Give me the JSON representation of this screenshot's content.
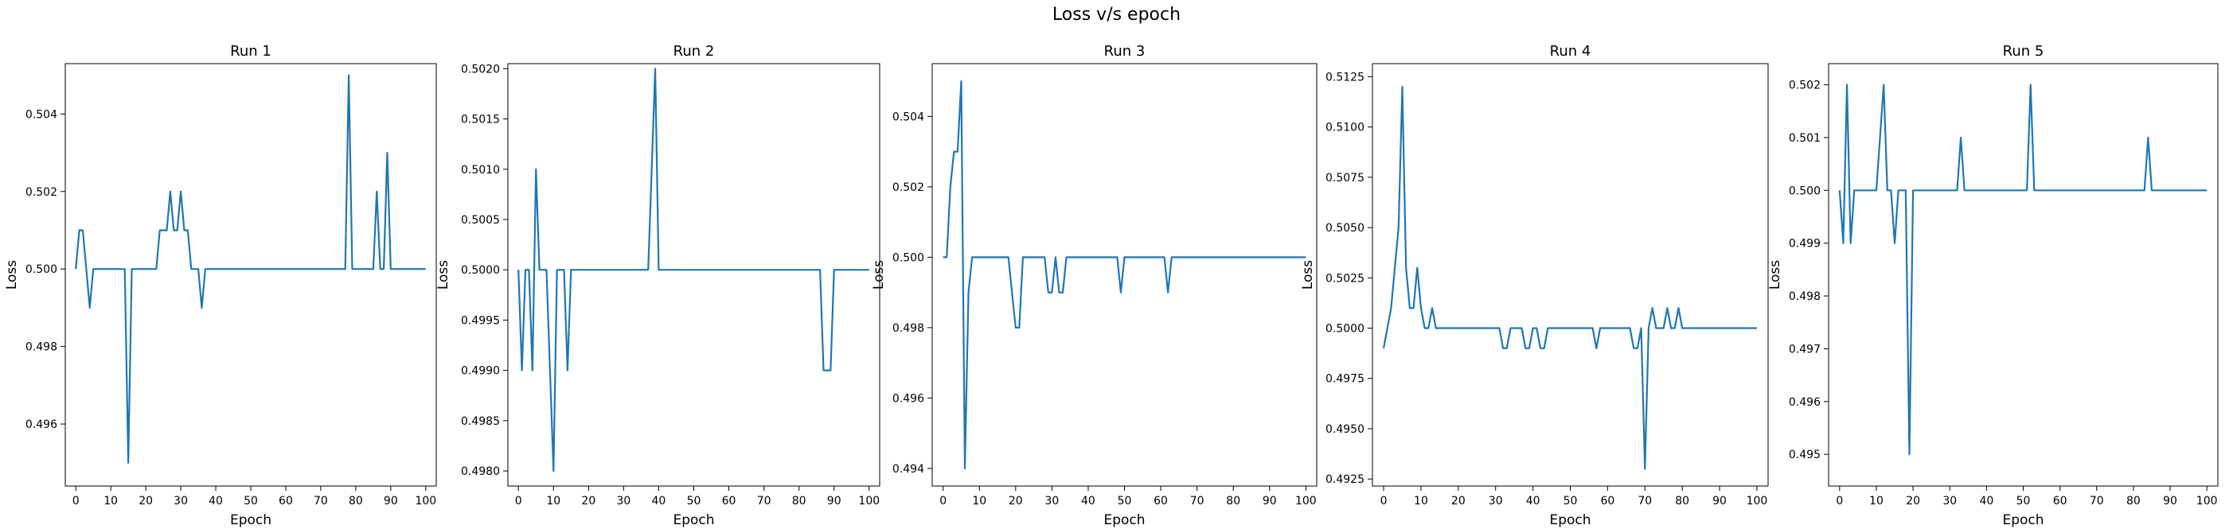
{
  "figure": {
    "title": "Loss v/s epoch"
  },
  "chart_data": [
    {
      "type": "line",
      "title": "Run 1",
      "xlabel": "Epoch",
      "ylabel": "Loss",
      "xlim": [
        -3,
        103
      ],
      "ylim": [
        0.4944,
        0.5053
      ],
      "xticks": [
        0,
        10,
        20,
        30,
        40,
        50,
        60,
        70,
        80,
        90,
        100
      ],
      "yticks": [
        0.496,
        0.498,
        0.5,
        0.502,
        0.504
      ],
      "ytick_labels": [
        "0.496",
        "0.498",
        "0.500",
        "0.502",
        "0.504"
      ],
      "color": "#1f77b4",
      "series": [
        {
          "x": [
            0,
            1,
            2,
            3,
            4,
            5,
            14,
            15,
            16,
            17,
            23,
            24,
            25,
            26,
            27,
            28,
            29,
            30,
            31,
            32,
            33,
            34,
            35,
            36,
            37,
            38,
            39,
            40,
            77,
            78,
            79,
            85,
            86,
            87,
            88,
            89,
            90,
            100
          ],
          "y": [
            0.5,
            0.501,
            0.501,
            0.5,
            0.499,
            0.5,
            0.5,
            0.495,
            0.5,
            0.5,
            0.5,
            0.501,
            0.501,
            0.501,
            0.502,
            0.501,
            0.501,
            0.502,
            0.501,
            0.501,
            0.5,
            0.5,
            0.5,
            0.499,
            0.5,
            0.5,
            0.5,
            0.5,
            0.5,
            0.505,
            0.5,
            0.5,
            0.502,
            0.5,
            0.5,
            0.503,
            0.5,
            0.5
          ]
        }
      ]
    },
    {
      "type": "line",
      "title": "Run 2",
      "xlabel": "Epoch",
      "ylabel": "Loss",
      "xlim": [
        -3,
        103
      ],
      "ylim": [
        0.49785,
        0.50205
      ],
      "xticks": [
        0,
        10,
        20,
        30,
        40,
        50,
        60,
        70,
        80,
        90,
        100
      ],
      "yticks": [
        0.498,
        0.4985,
        0.499,
        0.4995,
        0.5,
        0.5005,
        0.501,
        0.5015,
        0.502
      ],
      "ytick_labels": [
        "0.4980",
        "0.4985",
        "0.4990",
        "0.4995",
        "0.5000",
        "0.5005",
        "0.5010",
        "0.5015",
        "0.5020"
      ],
      "color": "#1f77b4",
      "series": [
        {
          "x": [
            0,
            1,
            2,
            3,
            4,
            5,
            6,
            7,
            8,
            9,
            10,
            11,
            12,
            13,
            14,
            15,
            16,
            37,
            38,
            39,
            40,
            41,
            86,
            87,
            88,
            89,
            90,
            100
          ],
          "y": [
            0.5,
            0.499,
            0.5,
            0.5,
            0.499,
            0.501,
            0.5,
            0.5,
            0.5,
            0.499,
            0.498,
            0.5,
            0.5,
            0.5,
            0.499,
            0.5,
            0.5,
            0.5,
            0.501,
            0.502,
            0.5,
            0.5,
            0.5,
            0.499,
            0.499,
            0.499,
            0.5,
            0.5
          ]
        }
      ]
    },
    {
      "type": "line",
      "title": "Run 3",
      "xlabel": "Epoch",
      "ylabel": "Loss",
      "xlim": [
        -3,
        103
      ],
      "ylim": [
        0.4935,
        0.5055
      ],
      "xticks": [
        0,
        10,
        20,
        30,
        40,
        50,
        60,
        70,
        80,
        90,
        100
      ],
      "yticks": [
        0.494,
        0.496,
        0.498,
        0.5,
        0.502,
        0.504
      ],
      "ytick_labels": [
        "0.494",
        "0.496",
        "0.498",
        "0.500",
        "0.502",
        "0.504"
      ],
      "color": "#1f77b4",
      "series": [
        {
          "x": [
            0,
            1,
            2,
            3,
            4,
            5,
            6,
            7,
            8,
            9,
            10,
            18,
            19,
            20,
            21,
            22,
            23,
            28,
            29,
            30,
            31,
            32,
            33,
            34,
            35,
            48,
            49,
            50,
            61,
            62,
            63,
            100
          ],
          "y": [
            0.5,
            0.5,
            0.502,
            0.503,
            0.503,
            0.505,
            0.494,
            0.499,
            0.5,
            0.5,
            0.5,
            0.5,
            0.499,
            0.498,
            0.498,
            0.5,
            0.5,
            0.5,
            0.499,
            0.499,
            0.5,
            0.499,
            0.499,
            0.5,
            0.5,
            0.5,
            0.499,
            0.5,
            0.5,
            0.499,
            0.5,
            0.5
          ]
        }
      ]
    },
    {
      "type": "line",
      "title": "Run 4",
      "xlabel": "Epoch",
      "ylabel": "Loss",
      "xlim": [
        -3,
        103
      ],
      "ylim": [
        0.49215,
        0.51315
      ],
      "xticks": [
        0,
        10,
        20,
        30,
        40,
        50,
        60,
        70,
        80,
        90,
        100
      ],
      "yticks": [
        0.4925,
        0.495,
        0.4975,
        0.5,
        0.5025,
        0.505,
        0.5075,
        0.51,
        0.5125
      ],
      "ytick_labels": [
        "0.4925",
        "0.4950",
        "0.4975",
        "0.5000",
        "0.5025",
        "0.5050",
        "0.5075",
        "0.5100",
        "0.5125"
      ],
      "color": "#1f77b4",
      "series": [
        {
          "x": [
            0,
            1,
            2,
            3,
            4,
            5,
            6,
            7,
            8,
            9,
            10,
            11,
            12,
            13,
            14,
            31,
            32,
            33,
            34,
            35,
            36,
            37,
            38,
            39,
            40,
            41,
            42,
            43,
            44,
            56,
            57,
            58,
            66,
            67,
            68,
            69,
            70,
            71,
            72,
            73,
            74,
            75,
            76,
            77,
            78,
            79,
            80,
            100
          ],
          "y": [
            0.499,
            0.5,
            0.501,
            0.503,
            0.505,
            0.512,
            0.503,
            0.501,
            0.501,
            0.503,
            0.501,
            0.5,
            0.5,
            0.501,
            0.5,
            0.5,
            0.499,
            0.499,
            0.5,
            0.5,
            0.5,
            0.5,
            0.499,
            0.499,
            0.5,
            0.5,
            0.499,
            0.499,
            0.5,
            0.5,
            0.499,
            0.5,
            0.5,
            0.499,
            0.499,
            0.5,
            0.493,
            0.5,
            0.501,
            0.5,
            0.5,
            0.5,
            0.501,
            0.5,
            0.5,
            0.501,
            0.5,
            0.5
          ]
        }
      ]
    },
    {
      "type": "line",
      "title": "Run 5",
      "xlabel": "Epoch",
      "ylabel": "Loss",
      "xlim": [
        -3,
        103
      ],
      "ylim": [
        0.4944,
        0.5024
      ],
      "xticks": [
        0,
        10,
        20,
        30,
        40,
        50,
        60,
        70,
        80,
        90,
        100
      ],
      "yticks": [
        0.495,
        0.496,
        0.497,
        0.498,
        0.499,
        0.5,
        0.501,
        0.502
      ],
      "ytick_labels": [
        "0.495",
        "0.496",
        "0.497",
        "0.498",
        "0.499",
        "0.500",
        "0.501",
        "0.502"
      ],
      "color": "#1f77b4",
      "series": [
        {
          "x": [
            0,
            1,
            2,
            3,
            4,
            5,
            6,
            7,
            8,
            9,
            10,
            11,
            12,
            13,
            14,
            15,
            16,
            17,
            18,
            19,
            20,
            21,
            32,
            33,
            34,
            51,
            52,
            53,
            83,
            84,
            85,
            100
          ],
          "y": [
            0.5,
            0.499,
            0.502,
            0.499,
            0.5,
            0.5,
            0.5,
            0.5,
            0.5,
            0.5,
            0.5,
            0.501,
            0.502,
            0.5,
            0.5,
            0.499,
            0.5,
            0.5,
            0.5,
            0.495,
            0.5,
            0.5,
            0.5,
            0.501,
            0.5,
            0.5,
            0.502,
            0.5,
            0.5,
            0.501,
            0.5,
            0.5
          ]
        }
      ]
    }
  ]
}
